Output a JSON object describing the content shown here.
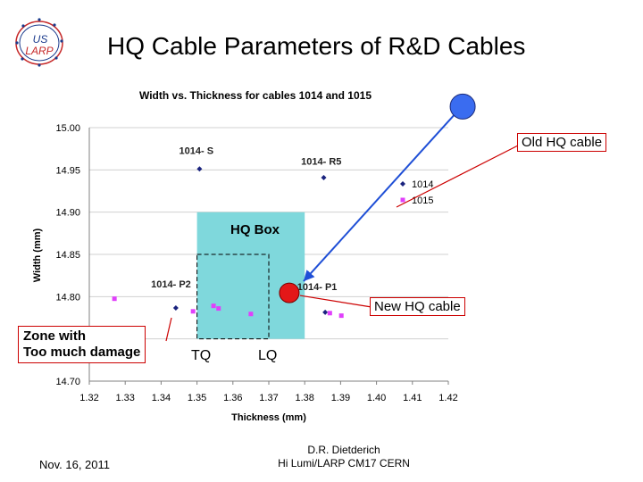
{
  "slide_title": "HQ Cable Parameters of R&D Cables",
  "logo": {
    "line1": "US",
    "line2": "LARP"
  },
  "callouts": {
    "old_hq_cable": "Old HQ cable",
    "new_hq_cable": "New HQ cable",
    "zone_line1": "Zone with",
    "zone_line2": "Too much damage",
    "hq_box": "HQ Box",
    "tq": "TQ",
    "lq": "LQ"
  },
  "footer": {
    "date": "Nov. 16, 2011",
    "author": "D.R. Dietderich",
    "event": "Hi Lumi/LARP CM17 CERN"
  },
  "colors": {
    "series_1014": "#1a237e",
    "series_1015": "#e040fb",
    "hq_box": "#7fd8dc",
    "callout_border": "#cc0000",
    "arrow": "#1f4fd6",
    "old_marker": "#3a6cf0",
    "new_marker": "#e31818"
  },
  "chart_data": {
    "type": "scatter",
    "title": "Width vs. Thickness for cables 1014 and 1015",
    "xlabel": "Thickness (mm)",
    "ylabel": "Width (mm)",
    "xlim": [
      1.32,
      1.42
    ],
    "ylim": [
      14.7,
      15.0
    ],
    "x_ticks": [
      "1.32",
      "1.33",
      "1.34",
      "1.35",
      "1.36",
      "1.37",
      "1.38",
      "1.39",
      "1.40",
      "1.41",
      "1.42"
    ],
    "y_ticks": [
      "14.70",
      "14.75",
      "14.80",
      "14.85",
      "14.90",
      "14.95",
      "15.00"
    ],
    "legend_position": "top-right",
    "series": [
      {
        "name": "1014",
        "marker": "diamond",
        "points": [
          [
            1.3507,
            14.9512
          ],
          [
            1.3853,
            14.9408
          ],
          [
            1.3441,
            14.7866
          ],
          [
            1.3745,
            14.8
          ],
          [
            1.3857,
            14.7815
          ]
        ]
      },
      {
        "name": "1015",
        "marker": "square",
        "points": [
          [
            1.327,
            14.7975
          ],
          [
            1.3489,
            14.7826
          ],
          [
            1.3546,
            14.7891
          ],
          [
            1.356,
            14.786
          ],
          [
            1.365,
            14.7795
          ],
          [
            1.387,
            14.7805
          ],
          [
            1.3902,
            14.7775
          ]
        ]
      }
    ],
    "annotations": [
      {
        "text": "1014- S",
        "x": 1.345,
        "y": 14.969
      },
      {
        "text": "1014- R5",
        "x": 1.379,
        "y": 14.956
      },
      {
        "text": "1014- P2",
        "x": 1.3372,
        "y": 14.811
      },
      {
        "text": "1014- P1",
        "x": 1.3779,
        "y": 14.8075
      }
    ],
    "regions": [
      {
        "name": "HQ Box",
        "x": [
          1.35,
          1.38
        ],
        "y": [
          14.75,
          14.8999
        ]
      },
      {
        "name": "TQ/LQ",
        "x": [
          1.35,
          1.37
        ],
        "y": [
          14.75,
          14.85
        ]
      }
    ],
    "markers": [
      {
        "name": "Old HQ cable",
        "x": 1.424,
        "y": 15.025
      },
      {
        "name": "New HQ cable",
        "x": 1.3757,
        "y": 14.8045
      }
    ]
  }
}
